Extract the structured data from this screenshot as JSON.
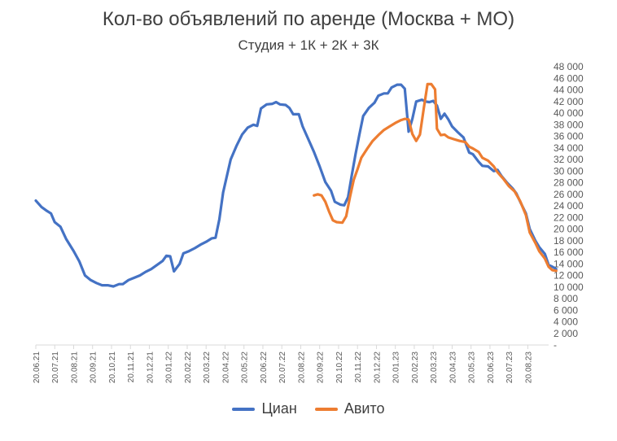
{
  "chart_data": {
    "type": "line",
    "title": "Кол-во объявлений по аренде (Москва + МО)",
    "subtitle": "Студия + 1К + 2К + 3К",
    "ylim": [
      0,
      48000
    ],
    "y_ticks": [
      "-",
      "2 000",
      "4 000",
      "6 000",
      "8 000",
      "10 000",
      "12 000",
      "14 000",
      "16 000",
      "18 000",
      "20 000",
      "22 000",
      "24 000",
      "26 000",
      "28 000",
      "30 000",
      "32 000",
      "34 000",
      "36 000",
      "38 000",
      "40 000",
      "42 000",
      "44 000",
      "46 000",
      "48 000"
    ],
    "x_tick_labels": [
      "20.06.21",
      "20.07.21",
      "20.08.21",
      "20.09.21",
      "20.10.21",
      "20.11.21",
      "20.12.21",
      "20.01.22",
      "20.02.22",
      "20.03.22",
      "20.04.22",
      "20.05.22",
      "20.06.22",
      "20.07.22",
      "20.08.22",
      "20.09.22",
      "20.10.22",
      "20.11.22",
      "20.12.22",
      "20.01.23",
      "20.02.23",
      "20.03.23",
      "20.04.23",
      "20.05.23",
      "20.06.23",
      "20.07.23",
      "20.08.23"
    ],
    "x_range": [
      0,
      27.1
    ],
    "grid": false,
    "legend_position": "bottom",
    "series": [
      {
        "name": "Циан",
        "color": "#4472c4",
        "points": [
          [
            0,
            24900
          ],
          [
            0.3,
            23800
          ],
          [
            0.6,
            23100
          ],
          [
            0.8,
            22700
          ],
          [
            1.0,
            21200
          ],
          [
            1.3,
            20400
          ],
          [
            1.6,
            18300
          ],
          [
            2.0,
            16200
          ],
          [
            2.3,
            14400
          ],
          [
            2.6,
            12000
          ],
          [
            2.9,
            11200
          ],
          [
            3.2,
            10700
          ],
          [
            3.5,
            10300
          ],
          [
            3.8,
            10300
          ],
          [
            4.1,
            10100
          ],
          [
            4.4,
            10500
          ],
          [
            4.6,
            10500
          ],
          [
            4.9,
            11200
          ],
          [
            5.2,
            11600
          ],
          [
            5.5,
            12000
          ],
          [
            5.8,
            12600
          ],
          [
            6.1,
            13100
          ],
          [
            6.4,
            13800
          ],
          [
            6.7,
            14500
          ],
          [
            6.9,
            15400
          ],
          [
            7.1,
            15300
          ],
          [
            7.3,
            12700
          ],
          [
            7.6,
            14000
          ],
          [
            7.8,
            15800
          ],
          [
            8.1,
            16200
          ],
          [
            8.4,
            16700
          ],
          [
            8.7,
            17300
          ],
          [
            9.0,
            17800
          ],
          [
            9.3,
            18400
          ],
          [
            9.5,
            18500
          ],
          [
            9.7,
            21700
          ],
          [
            9.9,
            26300
          ],
          [
            10.1,
            29200
          ],
          [
            10.3,
            32000
          ],
          [
            10.6,
            34300
          ],
          [
            10.9,
            36300
          ],
          [
            11.2,
            37500
          ],
          [
            11.5,
            38000
          ],
          [
            11.7,
            37800
          ],
          [
            11.9,
            40800
          ],
          [
            12.2,
            41500
          ],
          [
            12.5,
            41600
          ],
          [
            12.7,
            41900
          ],
          [
            12.9,
            41500
          ],
          [
            13.2,
            41400
          ],
          [
            13.4,
            40900
          ],
          [
            13.6,
            39800
          ],
          [
            13.9,
            39800
          ],
          [
            14.1,
            37700
          ],
          [
            14.4,
            35500
          ],
          [
            14.7,
            33300
          ],
          [
            15.0,
            30800
          ],
          [
            15.3,
            28100
          ],
          [
            15.6,
            26600
          ],
          [
            15.8,
            24700
          ],
          [
            16.1,
            24200
          ],
          [
            16.3,
            24100
          ],
          [
            16.5,
            25500
          ],
          [
            16.7,
            29300
          ],
          [
            16.9,
            33000
          ],
          [
            17.1,
            36300
          ],
          [
            17.3,
            39500
          ],
          [
            17.6,
            40900
          ],
          [
            17.9,
            41800
          ],
          [
            18.1,
            43000
          ],
          [
            18.4,
            43400
          ],
          [
            18.6,
            43400
          ],
          [
            18.8,
            44400
          ],
          [
            19.1,
            44900
          ],
          [
            19.3,
            44900
          ],
          [
            19.5,
            44200
          ],
          [
            19.7,
            36800
          ],
          [
            19.9,
            39000
          ],
          [
            20.1,
            42000
          ],
          [
            20.4,
            42300
          ],
          [
            20.6,
            42000
          ],
          [
            20.8,
            41900
          ],
          [
            21.0,
            42100
          ],
          [
            21.2,
            41300
          ],
          [
            21.4,
            39000
          ],
          [
            21.6,
            39900
          ],
          [
            21.8,
            38900
          ],
          [
            22.0,
            37700
          ],
          [
            22.3,
            36700
          ],
          [
            22.6,
            35800
          ],
          [
            22.9,
            33200
          ],
          [
            23.1,
            32900
          ],
          [
            23.4,
            31600
          ],
          [
            23.6,
            30900
          ],
          [
            23.9,
            30800
          ],
          [
            24.2,
            30000
          ],
          [
            24.4,
            30200
          ],
          [
            24.6,
            29200
          ],
          [
            24.9,
            28000
          ],
          [
            25.2,
            27000
          ],
          [
            25.4,
            26100
          ],
          [
            25.6,
            24700
          ],
          [
            25.9,
            22700
          ],
          [
            26.1,
            20000
          ],
          [
            26.4,
            18000
          ],
          [
            26.6,
            16900
          ],
          [
            26.9,
            15700
          ],
          [
            27.1,
            13800
          ],
          [
            27.3,
            13500
          ],
          [
            27.5,
            13100
          ]
        ]
      },
      {
        "name": "Авито",
        "color": "#ed7d31",
        "points": [
          [
            14.7,
            25800
          ],
          [
            14.9,
            26000
          ],
          [
            15.1,
            25800
          ],
          [
            15.3,
            24700
          ],
          [
            15.5,
            23000
          ],
          [
            15.7,
            21500
          ],
          [
            15.9,
            21200
          ],
          [
            16.2,
            21100
          ],
          [
            16.4,
            22200
          ],
          [
            16.6,
            25500
          ],
          [
            16.8,
            28500
          ],
          [
            17.0,
            30300
          ],
          [
            17.2,
            32300
          ],
          [
            17.5,
            33800
          ],
          [
            17.8,
            35200
          ],
          [
            18.1,
            36200
          ],
          [
            18.4,
            37100
          ],
          [
            18.7,
            37700
          ],
          [
            19.0,
            38300
          ],
          [
            19.3,
            38800
          ],
          [
            19.5,
            39000
          ],
          [
            19.7,
            38900
          ],
          [
            19.9,
            36400
          ],
          [
            20.1,
            35200
          ],
          [
            20.3,
            36300
          ],
          [
            20.5,
            40800
          ],
          [
            20.7,
            45000
          ],
          [
            20.9,
            45000
          ],
          [
            21.1,
            44100
          ],
          [
            21.2,
            37300
          ],
          [
            21.4,
            36200
          ],
          [
            21.6,
            36300
          ],
          [
            21.8,
            35800
          ],
          [
            22.1,
            35500
          ],
          [
            22.4,
            35200
          ],
          [
            22.7,
            35000
          ],
          [
            22.9,
            34200
          ],
          [
            23.1,
            33900
          ],
          [
            23.4,
            33300
          ],
          [
            23.6,
            32300
          ],
          [
            23.9,
            31800
          ],
          [
            24.2,
            30800
          ],
          [
            24.4,
            29800
          ],
          [
            24.7,
            28700
          ],
          [
            25.0,
            27400
          ],
          [
            25.3,
            26500
          ],
          [
            25.6,
            24800
          ],
          [
            25.9,
            22400
          ],
          [
            26.1,
            19400
          ],
          [
            26.4,
            17600
          ],
          [
            26.6,
            16200
          ],
          [
            26.9,
            14900
          ],
          [
            27.1,
            13500
          ],
          [
            27.3,
            12900
          ],
          [
            27.5,
            12800
          ]
        ]
      }
    ]
  }
}
